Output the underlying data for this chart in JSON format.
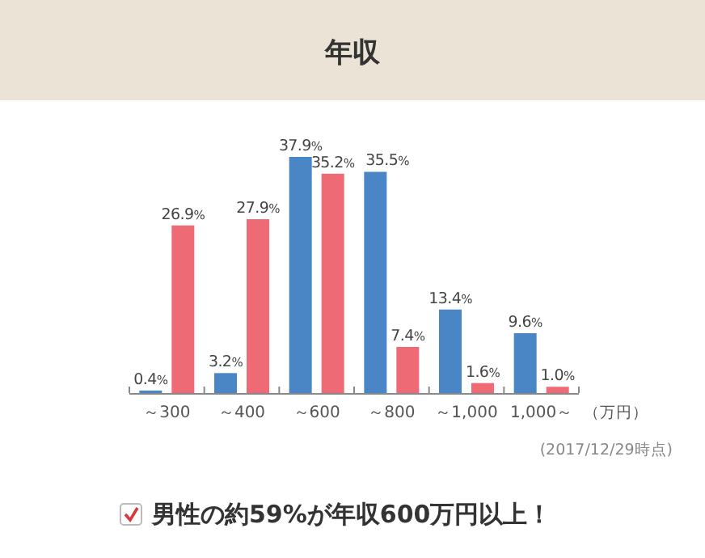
{
  "chart_data": {
    "type": "bar",
    "title": "年収",
    "categories": [
      "～300",
      "～400",
      "～600",
      "～800",
      "～1,000",
      "1,000～"
    ],
    "xlabel": "（万円）",
    "series": [
      {
        "color": "#4a86c6",
        "values": [
          0.4,
          3.2,
          37.9,
          35.5,
          13.4,
          9.6
        ],
        "value_labels": [
          "0.4%",
          "3.2%",
          "37.9%",
          "35.5%",
          "13.4%",
          "9.6%"
        ]
      },
      {
        "color": "#ee6b75",
        "values": [
          26.9,
          27.9,
          35.2,
          7.4,
          1.6,
          1.0
        ],
        "value_labels": [
          "26.9%",
          "27.9%",
          "35.2%",
          "7.4%",
          "1.6%",
          "1.0%"
        ]
      }
    ],
    "annotations": [
      "(2017/12/29時点)",
      "男性の約59%が年収600万円以上！"
    ]
  }
}
